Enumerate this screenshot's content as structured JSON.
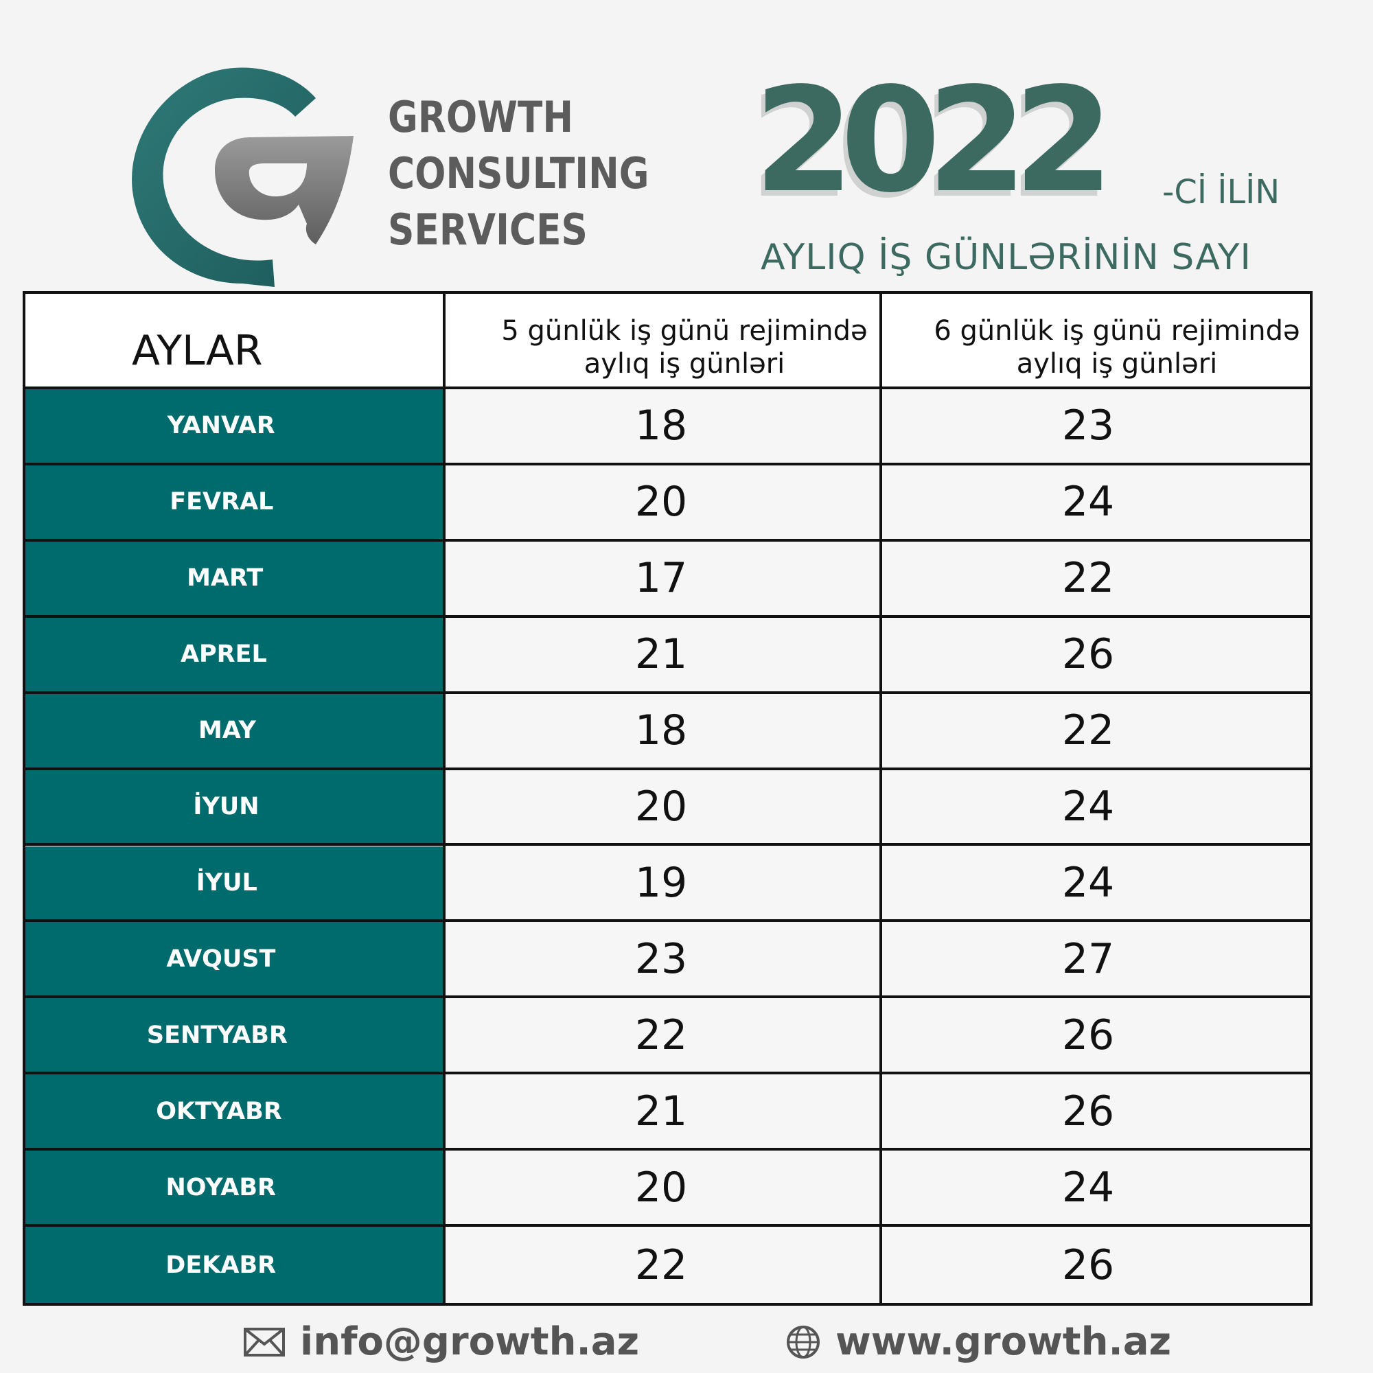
{
  "company": {
    "line1": "GROWTH",
    "line2": "CONSULTING",
    "line3": "SERVICES"
  },
  "year": {
    "value": "2022",
    "suffix": "-Cİ İLİN",
    "subtitle": "AYLIQ İŞ GÜNLƏRİNİN SAYI"
  },
  "table": {
    "header_months": "AYLAR",
    "header_col5": [
      "5 günlük iş günü rejimində",
      "aylıq iş günləri"
    ],
    "header_col6": [
      "6 günlük iş günü rejimində",
      "aylıq iş günləri"
    ],
    "rows": [
      {
        "month": "YANVAR",
        "five": "18",
        "six": "23"
      },
      {
        "month": "FEVRAL",
        "five": "20",
        "six": "24"
      },
      {
        "month": "MART",
        "five": "17",
        "six": "22"
      },
      {
        "month": "APREL",
        "five": "21",
        "six": "26"
      },
      {
        "month": "MAY",
        "five": "18",
        "six": "22"
      },
      {
        "month": "İYUN",
        "five": "20",
        "six": "24"
      },
      {
        "month": "İYUL",
        "five": "19",
        "six": "24"
      },
      {
        "month": "AVQUST",
        "five": "23",
        "six": "27"
      },
      {
        "month": "SENTYABR",
        "five": "22",
        "six": "26"
      },
      {
        "month": "OKTYABR",
        "five": "21",
        "six": "26"
      },
      {
        "month": "NOYABR",
        "five": "20",
        "six": "24"
      },
      {
        "month": "DEKABR",
        "five": "22",
        "six": "26"
      }
    ]
  },
  "footer": {
    "email": "info@growth.az",
    "website": "www.growth.az",
    "email_icon": "mail-icon",
    "website_icon": "globe-icon"
  },
  "colors": {
    "teal": "#006b6d",
    "dark_green": "#3d6a60",
    "gray_text": "#5c5c5c"
  }
}
